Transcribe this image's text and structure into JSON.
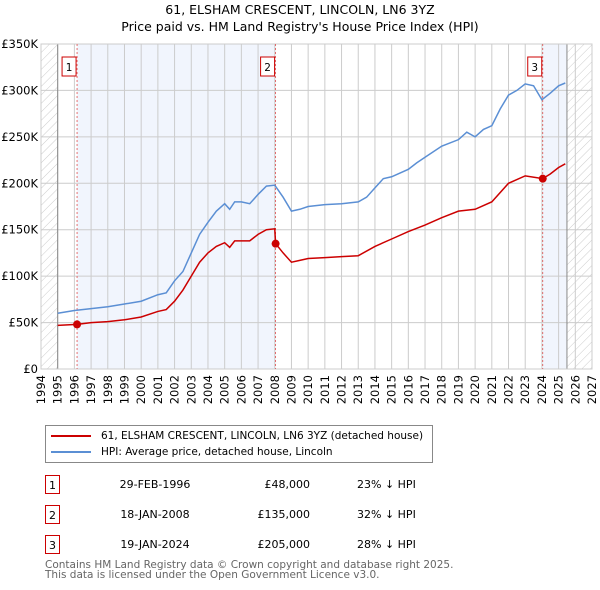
{
  "chart_data": {
    "type": "line",
    "title": "61, ELSHAM CRESCENT, LINCOLN, LN6 3YZ",
    "subtitle": "Price paid vs. HM Land Registry's House Price Index (HPI)",
    "xlim": [
      1994,
      2027
    ],
    "ylim": [
      0,
      350000
    ],
    "x_ticks": [
      "1994",
      "1995",
      "1996",
      "1997",
      "1998",
      "1999",
      "2000",
      "2001",
      "2002",
      "2003",
      "2004",
      "2005",
      "2006",
      "2007",
      "2008",
      "2009",
      "2010",
      "2011",
      "2012",
      "2013",
      "2014",
      "2015",
      "2016",
      "2017",
      "2018",
      "2019",
      "2020",
      "2021",
      "2022",
      "2023",
      "2024",
      "2025",
      "2026",
      "2027"
    ],
    "y_ticks": [
      "£0",
      "£50K",
      "£100K",
      "£150K",
      "£200K",
      "£250K",
      "£300K",
      "£350K"
    ],
    "grid": true,
    "series": [
      {
        "name": "61, ELSHAM CRESCENT, LINCOLN, LN6 3YZ (detached house)",
        "color": "#cc0000",
        "points": [
          [
            1995,
            47000
          ],
          [
            1996.16,
            48000
          ],
          [
            1997,
            50000
          ],
          [
            1998,
            51000
          ],
          [
            1999,
            53000
          ],
          [
            2000,
            56000
          ],
          [
            2001,
            62000
          ],
          [
            2001.5,
            64000
          ],
          [
            2002,
            73000
          ],
          [
            2002.5,
            85000
          ],
          [
            2003,
            100000
          ],
          [
            2003.5,
            115000
          ],
          [
            2004,
            125000
          ],
          [
            2004.5,
            132000
          ],
          [
            2005,
            136000
          ],
          [
            2005.3,
            131000
          ],
          [
            2005.6,
            138000
          ],
          [
            2006,
            138000
          ],
          [
            2006.5,
            138000
          ],
          [
            2007,
            145000
          ],
          [
            2007.5,
            150000
          ],
          [
            2008,
            151000
          ],
          [
            2008.05,
            135000
          ],
          [
            2008.5,
            125000
          ],
          [
            2009,
            115000
          ],
          [
            2009.5,
            117000
          ],
          [
            2010,
            119000
          ],
          [
            2011,
            120000
          ],
          [
            2012,
            121000
          ],
          [
            2013,
            122000
          ],
          [
            2014,
            132000
          ],
          [
            2015,
            140000
          ],
          [
            2016,
            148000
          ],
          [
            2017,
            155000
          ],
          [
            2018,
            163000
          ],
          [
            2019,
            170000
          ],
          [
            2020,
            172000
          ],
          [
            2021,
            180000
          ],
          [
            2022,
            200000
          ],
          [
            2023,
            208000
          ],
          [
            2024.05,
            205000
          ],
          [
            2024.5,
            210000
          ],
          [
            2025,
            217000
          ],
          [
            2025.4,
            221000
          ]
        ]
      },
      {
        "name": "HPI: Average price, detached house, Lincoln",
        "color": "#5b8fd4",
        "points": [
          [
            1995,
            60000
          ],
          [
            1996,
            63000
          ],
          [
            1997,
            65000
          ],
          [
            1998,
            67000
          ],
          [
            1999,
            70000
          ],
          [
            2000,
            73000
          ],
          [
            2001,
            80000
          ],
          [
            2001.5,
            82000
          ],
          [
            2002,
            95000
          ],
          [
            2002.5,
            105000
          ],
          [
            2003,
            125000
          ],
          [
            2003.5,
            145000
          ],
          [
            2004,
            158000
          ],
          [
            2004.5,
            170000
          ],
          [
            2005,
            178000
          ],
          [
            2005.3,
            172000
          ],
          [
            2005.6,
            180000
          ],
          [
            2006,
            180000
          ],
          [
            2006.5,
            178000
          ],
          [
            2007,
            188000
          ],
          [
            2007.5,
            197000
          ],
          [
            2008,
            198000
          ],
          [
            2008.5,
            185000
          ],
          [
            2009,
            170000
          ],
          [
            2009.5,
            172000
          ],
          [
            2010,
            175000
          ],
          [
            2011,
            177000
          ],
          [
            2012,
            178000
          ],
          [
            2013,
            180000
          ],
          [
            2013.5,
            185000
          ],
          [
            2014,
            195000
          ],
          [
            2014.5,
            205000
          ],
          [
            2015,
            207000
          ],
          [
            2016,
            215000
          ],
          [
            2016.5,
            222000
          ],
          [
            2017,
            228000
          ],
          [
            2018,
            240000
          ],
          [
            2019,
            247000
          ],
          [
            2019.5,
            255000
          ],
          [
            2020,
            250000
          ],
          [
            2020.5,
            258000
          ],
          [
            2021,
            262000
          ],
          [
            2021.5,
            280000
          ],
          [
            2022,
            295000
          ],
          [
            2022.5,
            300000
          ],
          [
            2023,
            307000
          ],
          [
            2023.5,
            305000
          ],
          [
            2024,
            290000
          ],
          [
            2024.5,
            297000
          ],
          [
            2025,
            305000
          ],
          [
            2025.4,
            308000
          ]
        ]
      }
    ],
    "sales": [
      {
        "label": "1",
        "x": 2008.05,
        "xs": 1996.16,
        "value": 48000
      },
      {
        "label": "2",
        "xs": 2008.05,
        "value": 135000
      },
      {
        "label": "3",
        "xs": 2024.05,
        "value": 205000
      }
    ]
  },
  "legend": [
    "61, ELSHAM CRESCENT, LINCOLN, LN6 3YZ (detached house)",
    "HPI: Average price, detached house, Lincoln"
  ],
  "table": [
    {
      "n": "1",
      "date": "29-FEB-1996",
      "price": "£48,000",
      "hpi": "23% ↓ HPI"
    },
    {
      "n": "2",
      "date": "18-JAN-2008",
      "price": "£135,000",
      "hpi": "32% ↓ HPI"
    },
    {
      "n": "3",
      "date": "19-JAN-2024",
      "price": "£205,000",
      "hpi": "28% ↓ HPI"
    }
  ],
  "footer": [
    "Contains HM Land Registry data © Crown copyright and database right 2025.",
    "This data is licensed under the Open Government Licence v3.0."
  ]
}
